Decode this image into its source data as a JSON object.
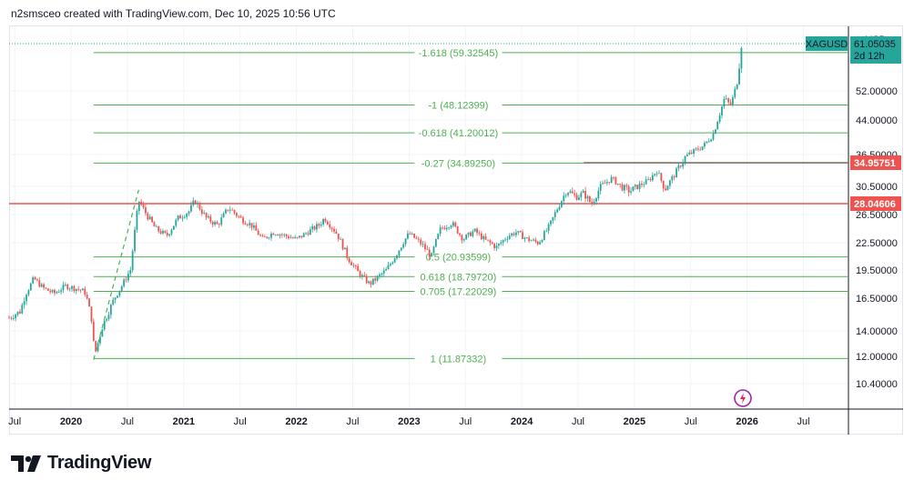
{
  "header": {
    "attribution": "n2smsceo created with TradingView.com, Dec 10, 2025 10:56 UTC"
  },
  "currency": "USD",
  "brand": "TradingView",
  "colors": {
    "fib_line": "#4caf50",
    "fib_text": "#4caf50",
    "up": "#26a69a",
    "down": "#ef5350",
    "resistance": "#8d6e63",
    "support": "#ef5350",
    "symbol_tag": "#26a69a",
    "axis_text": "#131722"
  },
  "chart_data": {
    "type": "candlestick",
    "symbol": "XAGUSD",
    "last_price": "61.05035",
    "countdown": "2d 12h",
    "ylim": [
      9.5,
      64
    ],
    "xlim": [
      2019.45,
      2026.9
    ],
    "x_ticks": [
      {
        "label": "Jul",
        "x": 2019.5
      },
      {
        "label": "2020",
        "x": 2020.0
      },
      {
        "label": "Jul",
        "x": 2020.5
      },
      {
        "label": "2021",
        "x": 2021.0
      },
      {
        "label": "Jul",
        "x": 2021.5
      },
      {
        "label": "2022",
        "x": 2022.0
      },
      {
        "label": "Jul",
        "x": 2022.5
      },
      {
        "label": "2023",
        "x": 2023.0
      },
      {
        "label": "Jul",
        "x": 2023.5
      },
      {
        "label": "2024",
        "x": 2024.0
      },
      {
        "label": "Jul",
        "x": 2024.5
      },
      {
        "label": "2025",
        "x": 2025.0
      },
      {
        "label": "Jul",
        "x": 2025.5
      },
      {
        "label": "2026",
        "x": 2026.0
      },
      {
        "label": "Jul",
        "x": 2026.5
      }
    ],
    "y_ticks": [
      {
        "label": "52.00000",
        "v": 52.0
      },
      {
        "label": "44.00000",
        "v": 44.0
      },
      {
        "label": "36.50000",
        "v": 36.5
      },
      {
        "label": "30.50000",
        "v": 30.5
      },
      {
        "label": "26.50000",
        "v": 26.5
      },
      {
        "label": "22.50000",
        "v": 22.5
      },
      {
        "label": "19.50000",
        "v": 19.5
      },
      {
        "label": "16.50000",
        "v": 16.5
      },
      {
        "label": "14.00000",
        "v": 14.0
      },
      {
        "label": "12.00000",
        "v": 12.0
      },
      {
        "label": "10.40000",
        "v": 10.4
      }
    ],
    "price_tags": [
      {
        "label": "34.95751",
        "v": 34.95751,
        "color": "#ef5350"
      },
      {
        "label": "28.04606",
        "v": 28.04606,
        "color": "#ef5350"
      }
    ],
    "fib_levels": [
      {
        "label": "-1.618 (59.32545)",
        "v": 59.32545
      },
      {
        "label": "-1 (48.12399)",
        "v": 48.12399
      },
      {
        "label": "-0.618 (41.20012)",
        "v": 41.20012
      },
      {
        "label": "-0.27 (34.89250)",
        "v": 34.8925
      },
      {
        "label": "0.5 (20.93599)",
        "v": 20.93599
      },
      {
        "label": "0.618 (18.79720)",
        "v": 18.7972
      },
      {
        "label": "0.705 (17.22029)",
        "v": 17.22029
      },
      {
        "label": "1 (11.87332)",
        "v": 11.87332
      }
    ],
    "horizontal_lines": [
      {
        "v": 34.95751,
        "x_start": 2024.55,
        "color": "#8d6e63"
      },
      {
        "v": 28.04606,
        "x_start": 2019.45,
        "color": "#ef5350"
      }
    ],
    "fib_x_range": [
      2020.2,
      2026.9
    ],
    "dashed_trend": [
      [
        2020.2,
        11.8
      ],
      [
        2020.6,
        30.0
      ]
    ],
    "price_path": [
      [
        2019.45,
        15.0
      ],
      [
        2019.55,
        15.5
      ],
      [
        2019.6,
        17.0
      ],
      [
        2019.67,
        18.6
      ],
      [
        2019.75,
        17.6
      ],
      [
        2019.85,
        17.0
      ],
      [
        2019.95,
        17.8
      ],
      [
        2020.05,
        17.5
      ],
      [
        2020.12,
        17.2
      ],
      [
        2020.18,
        15.0
      ],
      [
        2020.21,
        12.1
      ],
      [
        2020.28,
        14.4
      ],
      [
        2020.36,
        16.0
      ],
      [
        2020.45,
        17.8
      ],
      [
        2020.53,
        19.6
      ],
      [
        2020.6,
        28.5
      ],
      [
        2020.67,
        26.5
      ],
      [
        2020.75,
        24.5
      ],
      [
        2020.85,
        23.5
      ],
      [
        2020.95,
        26.0
      ],
      [
        2021.05,
        27.0
      ],
      [
        2021.1,
        28.5
      ],
      [
        2021.2,
        26.0
      ],
      [
        2021.3,
        25.0
      ],
      [
        2021.4,
        27.5
      ],
      [
        2021.5,
        26.0
      ],
      [
        2021.6,
        25.0
      ],
      [
        2021.7,
        23.0
      ],
      [
        2021.8,
        24.0
      ],
      [
        2021.9,
        23.5
      ],
      [
        2022.0,
        23.0
      ],
      [
        2022.1,
        24.0
      ],
      [
        2022.2,
        25.0
      ],
      [
        2022.25,
        26.0
      ],
      [
        2022.35,
        24.0
      ],
      [
        2022.45,
        21.0
      ],
      [
        2022.55,
        19.2
      ],
      [
        2022.65,
        18.0
      ],
      [
        2022.7,
        18.5
      ],
      [
        2022.8,
        19.5
      ],
      [
        2022.9,
        21.5
      ],
      [
        2023.0,
        23.8
      ],
      [
        2023.1,
        22.5
      ],
      [
        2023.2,
        21.0
      ],
      [
        2023.28,
        24.5
      ],
      [
        2023.38,
        25.3
      ],
      [
        2023.48,
        23.0
      ],
      [
        2023.58,
        24.2
      ],
      [
        2023.68,
        22.8
      ],
      [
        2023.78,
        22.0
      ],
      [
        2023.88,
        23.5
      ],
      [
        2023.95,
        24.0
      ],
      [
        2024.05,
        23.0
      ],
      [
        2024.15,
        22.5
      ],
      [
        2024.25,
        25.0
      ],
      [
        2024.32,
        27.5
      ],
      [
        2024.4,
        30.0
      ],
      [
        2024.48,
        29.0
      ],
      [
        2024.55,
        29.5
      ],
      [
        2024.62,
        28.0
      ],
      [
        2024.7,
        30.5
      ],
      [
        2024.8,
        32.0
      ],
      [
        2024.88,
        30.5
      ],
      [
        2024.96,
        29.8
      ],
      [
        2025.05,
        30.8
      ],
      [
        2025.12,
        31.5
      ],
      [
        2025.2,
        33.5
      ],
      [
        2025.27,
        30.0
      ],
      [
        2025.35,
        32.5
      ],
      [
        2025.45,
        36.0
      ],
      [
        2025.55,
        37.5
      ],
      [
        2025.62,
        38.5
      ],
      [
        2025.7,
        41.0
      ],
      [
        2025.75,
        45.0
      ],
      [
        2025.8,
        50.0
      ],
      [
        2025.85,
        48.0
      ],
      [
        2025.88,
        50.5
      ],
      [
        2025.92,
        55.0
      ],
      [
        2025.95,
        61.05
      ]
    ]
  }
}
